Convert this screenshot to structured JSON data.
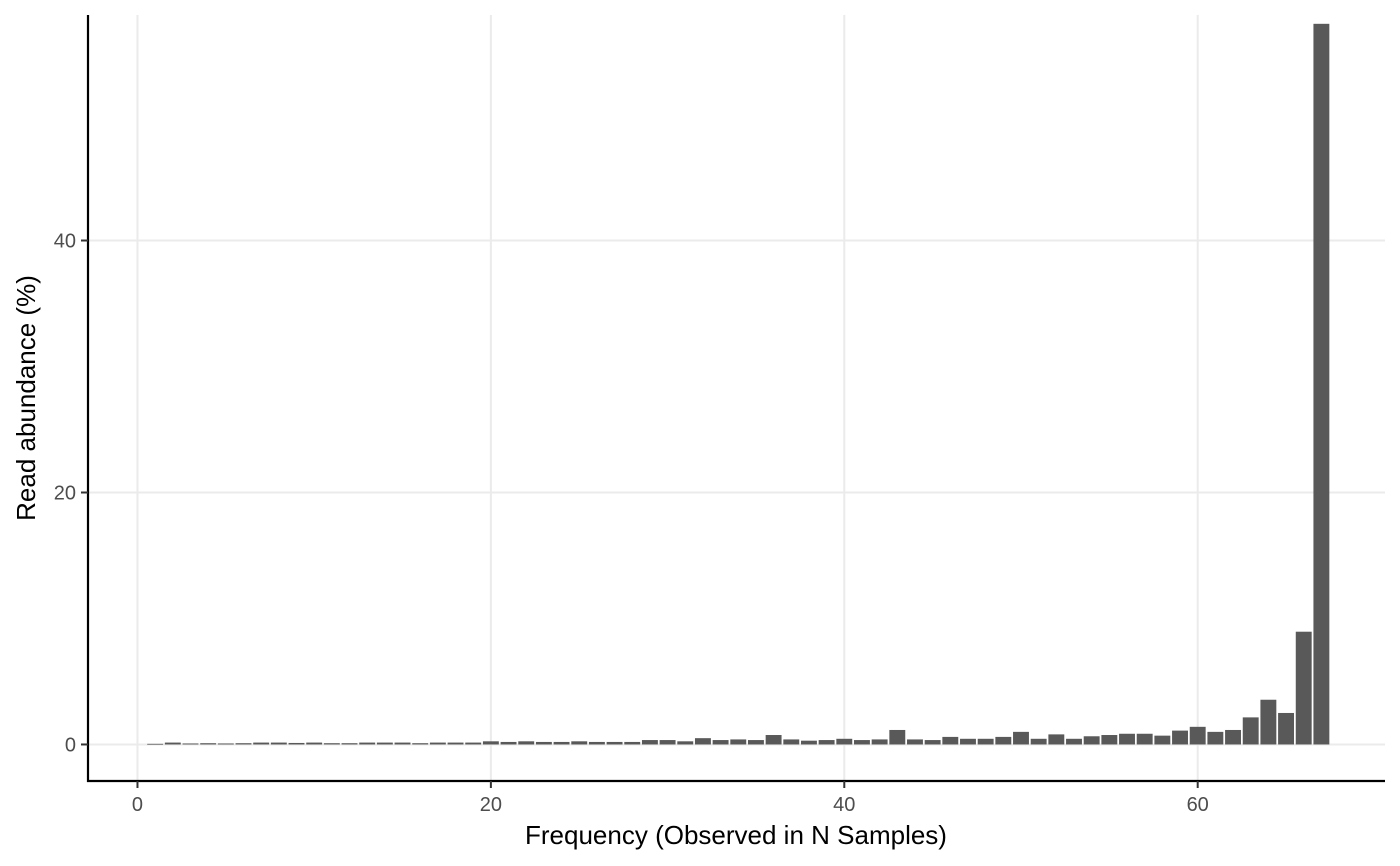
{
  "chart_data": {
    "type": "bar",
    "xlabel": "Frequency (Observed in N Samples)",
    "ylabel": "Read abundance (%)",
    "xlim": [
      -2.8,
      70.6
    ],
    "ylim": [
      -2.9,
      57.9
    ],
    "x_ticks": [
      0,
      20,
      40,
      60
    ],
    "x_tick_labels": [
      "0",
      "20",
      "40",
      "60"
    ],
    "y_ticks": [
      0,
      20,
      40
    ],
    "y_tick_labels": [
      "0",
      "20",
      "40"
    ],
    "grid": true,
    "bar_color": "#595959",
    "grid_color": "#ebebeb",
    "x": [
      1,
      2,
      3,
      4,
      5,
      6,
      7,
      8,
      9,
      10,
      11,
      12,
      13,
      14,
      15,
      16,
      17,
      18,
      19,
      20,
      21,
      22,
      23,
      24,
      25,
      26,
      27,
      28,
      29,
      30,
      31,
      32,
      33,
      34,
      35,
      36,
      37,
      38,
      39,
      40,
      41,
      42,
      43,
      44,
      45,
      46,
      47,
      48,
      49,
      50,
      51,
      52,
      53,
      54,
      55,
      56,
      57,
      58,
      59,
      60,
      61,
      62,
      63,
      64,
      65,
      66,
      67
    ],
    "values": [
      0.05,
      0.15,
      0.08,
      0.1,
      0.08,
      0.1,
      0.15,
      0.15,
      0.12,
      0.15,
      0.1,
      0.1,
      0.15,
      0.15,
      0.15,
      0.1,
      0.15,
      0.15,
      0.15,
      0.25,
      0.2,
      0.25,
      0.2,
      0.2,
      0.25,
      0.2,
      0.2,
      0.2,
      0.35,
      0.35,
      0.25,
      0.5,
      0.35,
      0.4,
      0.35,
      0.75,
      0.4,
      0.3,
      0.35,
      0.45,
      0.35,
      0.4,
      1.15,
      0.4,
      0.35,
      0.6,
      0.45,
      0.45,
      0.6,
      1.0,
      0.45,
      0.8,
      0.45,
      0.65,
      0.75,
      0.85,
      0.85,
      0.7,
      1.1,
      1.4,
      1.0,
      1.15,
      2.15,
      3.55,
      2.5,
      8.95,
      57.2
    ]
  }
}
